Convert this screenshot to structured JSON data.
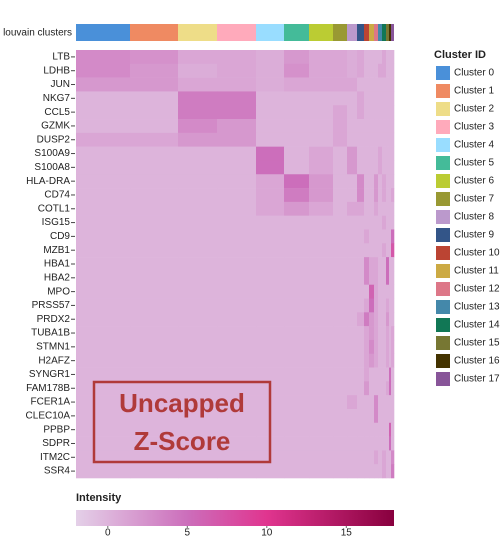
{
  "chart_data": {
    "type": "heatmap",
    "group_label": "louvain clusters",
    "legend_title": "Cluster ID",
    "clusters": [
      "Cluster 0",
      "Cluster 1",
      "Cluster 2",
      "Cluster 3",
      "Cluster 4",
      "Cluster 5",
      "Cluster 6",
      "Cluster 7",
      "Cluster 8",
      "Cluster 9",
      "Cluster 10",
      "Cluster 11",
      "Cluster 12",
      "Cluster 13",
      "Cluster 14",
      "Cluster 15",
      "Cluster 16",
      "Cluster 17"
    ],
    "cluster_colors": [
      "#4a90d9",
      "#ef8a62",
      "#eedd88",
      "#ffaabb",
      "#99ddff",
      "#44bb99",
      "#bbcc33",
      "#999933",
      "#bb99cc",
      "#335588",
      "#bb4433",
      "#ccaa44",
      "#dd7788",
      "#4488aa",
      "#117755",
      "#777733",
      "#443300",
      "#885599"
    ],
    "cluster_cells": [
      540,
      480,
      390,
      390,
      280,
      250,
      240,
      140,
      100,
      70,
      50,
      50,
      40,
      40,
      40,
      30,
      20,
      30
    ],
    "genes": [
      "LTB",
      "LDHB",
      "JUN",
      "NKG7",
      "CCL5",
      "GZMK",
      "DUSP2",
      "S100A9",
      "S100A8",
      "HLA-DRA",
      "CD74",
      "COTL1",
      "ISG15",
      "CD9",
      "MZB1",
      "HBA1",
      "HBA2",
      "MPO",
      "PRSS57",
      "PRDX2",
      "TUBA1B",
      "STMN1",
      "H2AFZ",
      "SYNGR1",
      "FAM178B",
      "FCER1A",
      "CLEC10A",
      "PPBP",
      "SDPR",
      "ITM2C",
      "SSR4"
    ],
    "matrix": [
      [
        3,
        2.5,
        1,
        1,
        0.5,
        2,
        1,
        1,
        0.5,
        1,
        0,
        0,
        0,
        0,
        1,
        0,
        0,
        0
      ],
      [
        3,
        2,
        0.5,
        1,
        0.5,
        2.5,
        1,
        1,
        0.5,
        1,
        0,
        0,
        0,
        1,
        1,
        0,
        0,
        0
      ],
      [
        2,
        2,
        1,
        1,
        0.5,
        1,
        1,
        1,
        1,
        0,
        0,
        0,
        0,
        0,
        0,
        0,
        0,
        0
      ],
      [
        0,
        0,
        4,
        4,
        0,
        0,
        0,
        0,
        0,
        1,
        0,
        0,
        0,
        0,
        0,
        0,
        0,
        0
      ],
      [
        0,
        0,
        4,
        4,
        0,
        0,
        0,
        1,
        0,
        1,
        0,
        0,
        0,
        0,
        0,
        0,
        0,
        0
      ],
      [
        0,
        0,
        3,
        2,
        0,
        0,
        0,
        1,
        0,
        0,
        0,
        0,
        0,
        0,
        0,
        0,
        0,
        0
      ],
      [
        1,
        1,
        2,
        2,
        0,
        0,
        0,
        1,
        0,
        0,
        0,
        0,
        0,
        0,
        0,
        0,
        0,
        0
      ],
      [
        0,
        0,
        0,
        0,
        5,
        0,
        1,
        0,
        2,
        0,
        0,
        0,
        0,
        1,
        0,
        0,
        0,
        0
      ],
      [
        0,
        0,
        0,
        0,
        5,
        0,
        1,
        0,
        2,
        0,
        0,
        0,
        0,
        1,
        0,
        0,
        0,
        0
      ],
      [
        0,
        0,
        0,
        0,
        1,
        5,
        2,
        0,
        0,
        3,
        0,
        0,
        2,
        0,
        1,
        0,
        0,
        0
      ],
      [
        0,
        0,
        0,
        0,
        1,
        4,
        2,
        0,
        0,
        3,
        0,
        0,
        2,
        0,
        1,
        0,
        0,
        1
      ],
      [
        0,
        0,
        0,
        0,
        1,
        2,
        1,
        0,
        1,
        1,
        0,
        0,
        1,
        0,
        0,
        0,
        0,
        0
      ],
      [
        0,
        0,
        0,
        0,
        0,
        0,
        0,
        0,
        0,
        0,
        0,
        0,
        0,
        0,
        1,
        0,
        0,
        0
      ],
      [
        0,
        0,
        0,
        0,
        0,
        0,
        0,
        0,
        0,
        0,
        1,
        0,
        0,
        0,
        0,
        0,
        0,
        5
      ],
      [
        0,
        0,
        0,
        0,
        0,
        0,
        0,
        0,
        0,
        0,
        0,
        0,
        0,
        0,
        1,
        0,
        0,
        7
      ],
      [
        0,
        0,
        0,
        0,
        0,
        0,
        0,
        0,
        0,
        0,
        3,
        1,
        1,
        0,
        0,
        5,
        0,
        0
      ],
      [
        0,
        0,
        0,
        0,
        0,
        0,
        0,
        0,
        0,
        0,
        3,
        1,
        1,
        0,
        0,
        5,
        0,
        0
      ],
      [
        0,
        0,
        0,
        0,
        0,
        0,
        0,
        0,
        0,
        0,
        0,
        6,
        1,
        0,
        0,
        0,
        0,
        0
      ],
      [
        0,
        0,
        0,
        0,
        0,
        0,
        0,
        0,
        0,
        0,
        1,
        5,
        1,
        0,
        0,
        1,
        0,
        0
      ],
      [
        0,
        0,
        0,
        0,
        0,
        0,
        0,
        0,
        0,
        1,
        4,
        2,
        1,
        0,
        0,
        2,
        0,
        0
      ],
      [
        0,
        0,
        0,
        0,
        0,
        0,
        0,
        0,
        0,
        0,
        1,
        2,
        1,
        0,
        0,
        1,
        0,
        1
      ],
      [
        0,
        0,
        0,
        0,
        0,
        0,
        0,
        0,
        0,
        0,
        1,
        3,
        1,
        0,
        0,
        1,
        0,
        1
      ],
      [
        0,
        0,
        0,
        0,
        0,
        0,
        0,
        0,
        0,
        0,
        1,
        2,
        1,
        0,
        0,
        1,
        0,
        1
      ],
      [
        0,
        0,
        0,
        0,
        0,
        0,
        0,
        0,
        0,
        0,
        1,
        0,
        0,
        0,
        0,
        0,
        5,
        0
      ],
      [
        0,
        0,
        0,
        0,
        0,
        0,
        0,
        0,
        0,
        0,
        2,
        0,
        0,
        0,
        0,
        1,
        5,
        0
      ],
      [
        0,
        0,
        0,
        0,
        0,
        0,
        0,
        0,
        1,
        0,
        0,
        0,
        3,
        0,
        0,
        0,
        0,
        0
      ],
      [
        0,
        0,
        0,
        0,
        0,
        0,
        0,
        0,
        0,
        0,
        0,
        0,
        3,
        0,
        0,
        0,
        0,
        0
      ],
      [
        0,
        0,
        0,
        0,
        0,
        0,
        0,
        0,
        0,
        0,
        0,
        0,
        0,
        0,
        0,
        0,
        6,
        0
      ],
      [
        0,
        0,
        0,
        0,
        0,
        0,
        0,
        0,
        0,
        0,
        0,
        0,
        0,
        0,
        0,
        0,
        5,
        0
      ],
      [
        0,
        0,
        0,
        0,
        0,
        0,
        0,
        0,
        0,
        0,
        0,
        0,
        1,
        0,
        1,
        0,
        0,
        3
      ],
      [
        0,
        0,
        0,
        0,
        0,
        0,
        0,
        0,
        0,
        0,
        0,
        0,
        0,
        0,
        1,
        0,
        0,
        4
      ]
    ],
    "colorbar_title": "Intensity",
    "colorscale": [
      [
        -2,
        "#e4d0e8"
      ],
      [
        5,
        "#cc6ebb"
      ],
      [
        10,
        "#e0358f"
      ],
      [
        18,
        "#88003e"
      ]
    ],
    "clim": [
      -2,
      18
    ],
    "cticks": [
      0,
      5,
      10,
      15
    ],
    "annotation": [
      "Uncapped",
      "Z-Score"
    ]
  }
}
